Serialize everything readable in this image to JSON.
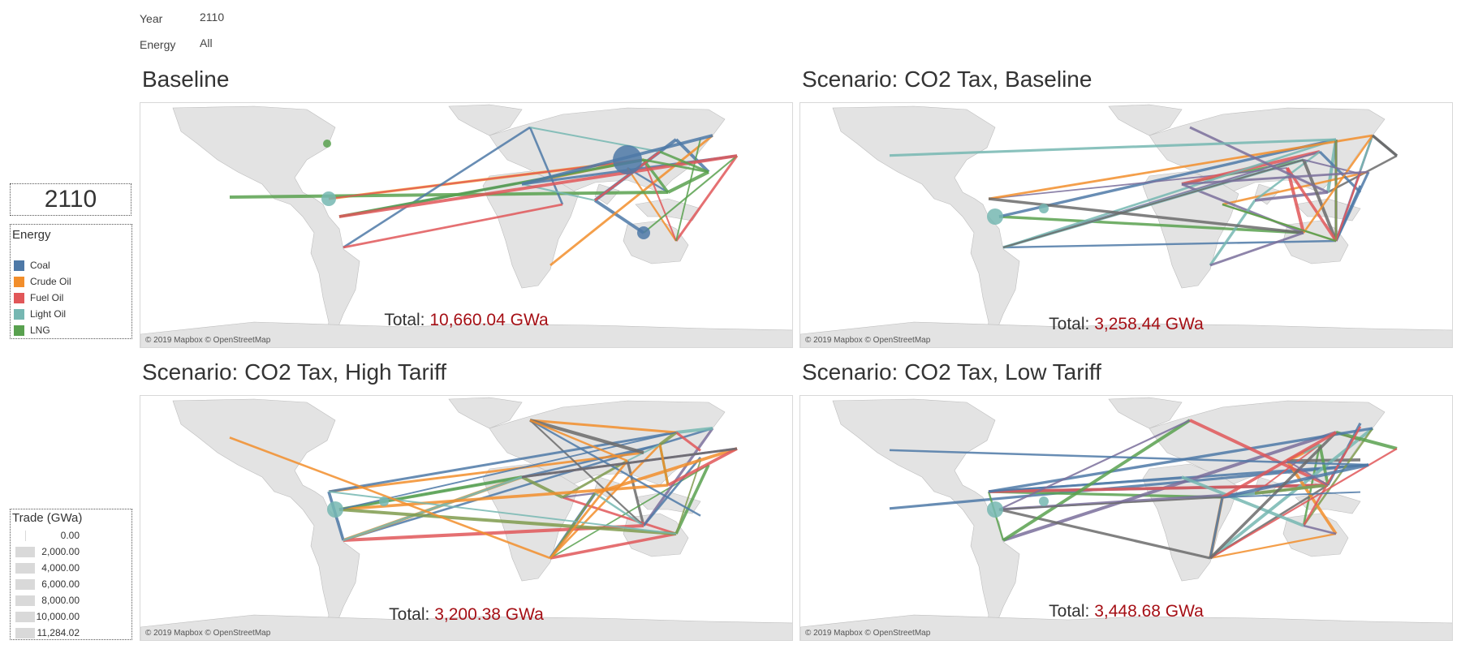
{
  "filters": {
    "year_label": "Year",
    "year_value": "2110",
    "energy_label": "Energy",
    "energy_value": "All"
  },
  "year_display": "2110",
  "energy_legend": {
    "title": "Energy",
    "items": [
      {
        "label": "Coal",
        "color": "#4e79a7"
      },
      {
        "label": "Crude Oil",
        "color": "#f28e2b"
      },
      {
        "label": "Fuel Oil",
        "color": "#e15759"
      },
      {
        "label": "Light Oil",
        "color": "#76b7b2"
      },
      {
        "label": "LNG",
        "color": "#59a14f"
      }
    ]
  },
  "size_legend": {
    "title": "Trade (GWa)",
    "items": [
      {
        "label": "0.00",
        "value": 0
      },
      {
        "label": "2,000.00",
        "value": 2000
      },
      {
        "label": "4,000.00",
        "value": 4000
      },
      {
        "label": "6,000.00",
        "value": 6000
      },
      {
        "label": "8,000.00",
        "value": 8000
      },
      {
        "label": "10,000.00",
        "value": 10000
      },
      {
        "label": "11,284.02",
        "value": 11284.02
      }
    ]
  },
  "attribution": "© 2019 Mapbox © OpenStreetMap",
  "panels": [
    {
      "title": "Baseline",
      "total_label": "Total:",
      "total_value": "10,660.04 GWa"
    },
    {
      "title": "Scenario: CO2 Tax, Baseline",
      "total_label": "Total:",
      "total_value": "3,258.44 GWa"
    },
    {
      "title": "Scenario: CO2 Tax, High Tariff",
      "total_label": "Total:",
      "total_value": "3,200.38 GWa"
    },
    {
      "title": "Scenario: CO2 Tax, Low Tariff",
      "total_label": "Total:",
      "total_value": "3,448.68 GWa"
    }
  ]
}
